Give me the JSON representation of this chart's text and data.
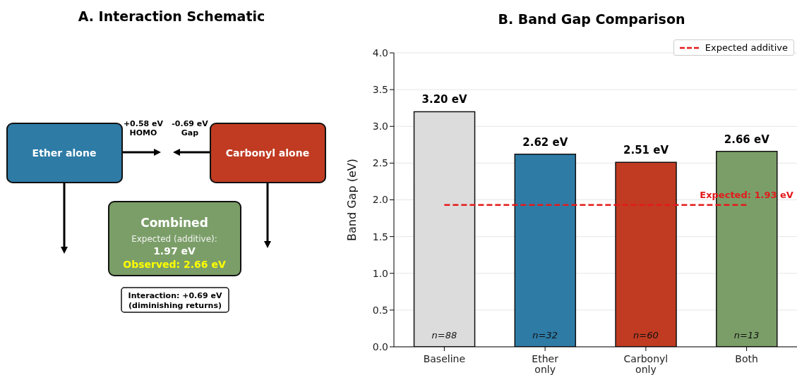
{
  "chart_data": [
    {
      "type": "other",
      "title": "A. Interaction Schematic",
      "annotations": [
        "Ether alone",
        "Carbonyl alone",
        "+0.58 eV",
        "HOMO",
        "-0.69 eV",
        "Gap",
        "Combined",
        "Expected (additive):",
        "1.97 eV",
        "Observed: 2.66 eV",
        "Interaction: +0.69 eV",
        "(diminishing returns)"
      ]
    },
    {
      "type": "bar",
      "title": "B. Band Gap Comparison",
      "ylabel": "Band Gap (eV)",
      "categories": [
        "Baseline",
        "Ether\nonly",
        "Carbonyl\nonly",
        "Both"
      ],
      "series": [
        {
          "type": "bar",
          "values": [
            3.2,
            2.62,
            2.51,
            2.66
          ],
          "colors": [
            "#dcdcdc",
            "#2e7ba6",
            "#c03b22",
            "#7b9e68"
          ],
          "value_labels": [
            "3.20 eV",
            "2.62 eV",
            "2.51 eV",
            "2.66 eV"
          ]
        },
        {
          "type": "line",
          "name": "Expected additive",
          "values": [
            1.93,
            1.93,
            1.93,
            1.93
          ],
          "color": "#e41a1c",
          "line_style": "dashed",
          "marker": "none"
        }
      ],
      "ylim": [
        0,
        4
      ],
      "yticks": [
        {
          "value": 0,
          "label": "0.0"
        },
        {
          "value": 0.5,
          "label": "0.5"
        },
        {
          "value": 1,
          "label": "1.0"
        },
        {
          "value": 1.5,
          "label": "1.5"
        },
        {
          "value": 2,
          "label": "2.0"
        },
        {
          "value": 2.5,
          "label": "2.5"
        },
        {
          "value": 3,
          "label": "3.0"
        },
        {
          "value": 3.5,
          "label": "3.5"
        },
        {
          "value": 4,
          "label": "4.0"
        }
      ],
      "grid": "y",
      "legend": "top right",
      "annotations": [
        "n=88",
        "n=32",
        "n=60",
        "n=13",
        {
          "text": "Expected: 1.93 eV",
          "x": "Both",
          "y": 1.93
        }
      ]
    }
  ]
}
